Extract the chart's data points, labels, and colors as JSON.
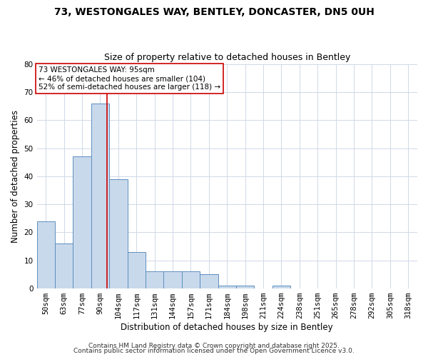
{
  "title1": "73, WESTONGALES WAY, BENTLEY, DONCASTER, DN5 0UH",
  "title2": "Size of property relative to detached houses in Bentley",
  "xlabel": "Distribution of detached houses by size in Bentley",
  "ylabel": "Number of detached properties",
  "bar_labels": [
    "50sqm",
    "63sqm",
    "77sqm",
    "90sqm",
    "104sqm",
    "117sqm",
    "131sqm",
    "144sqm",
    "157sqm",
    "171sqm",
    "184sqm",
    "198sqm",
    "211sqm",
    "224sqm",
    "238sqm",
    "251sqm",
    "265sqm",
    "278sqm",
    "292sqm",
    "305sqm",
    "318sqm"
  ],
  "bar_values": [
    24,
    16,
    47,
    66,
    39,
    13,
    6,
    6,
    6,
    5,
    1,
    1,
    0,
    1,
    0,
    0,
    0,
    0,
    0,
    0,
    0
  ],
  "bar_color": "#c9d9ec",
  "bar_edge_color": "#5b8fbe",
  "vline_color": "#cc0000",
  "vline_pos": 3.36,
  "annotation_text": "73 WESTONGALES WAY: 95sqm\n← 46% of detached houses are smaller (104)\n52% of semi-detached houses are larger (118) →",
  "annotation_box_color": "#ffffff",
  "annotation_box_edge": "#cc0000",
  "ylim": [
    0,
    80
  ],
  "yticks": [
    0,
    10,
    20,
    30,
    40,
    50,
    60,
    70,
    80
  ],
  "background_color": "#ffffff",
  "grid_color": "#d0d8e8",
  "footer1": "Contains HM Land Registry data © Crown copyright and database right 2025.",
  "footer2": "Contains public sector information licensed under the Open Government Licence v3.0.",
  "title1_fontsize": 10,
  "title2_fontsize": 9,
  "axis_fontsize": 8.5,
  "tick_fontsize": 7.5,
  "footer_fontsize": 6.5
}
